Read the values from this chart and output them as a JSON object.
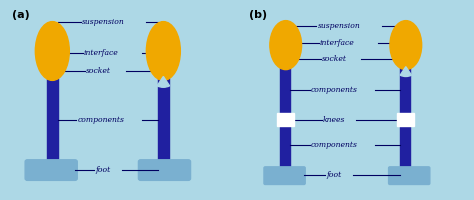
{
  "bg_color": "#add8e6",
  "leg_color": "#2020a0",
  "stump_color": "#f0a800",
  "foot_color": "#7ab0d0",
  "label_color": "#000060",
  "panel_a_label": "(a)",
  "panel_b_label": "(b)",
  "panel_a_labels": [
    "suspension",
    "interface",
    "socket",
    "components",
    "foot"
  ],
  "panel_b_labels": [
    "suspension",
    "interface",
    "socket",
    "components",
    "knees",
    "components",
    "foot"
  ]
}
